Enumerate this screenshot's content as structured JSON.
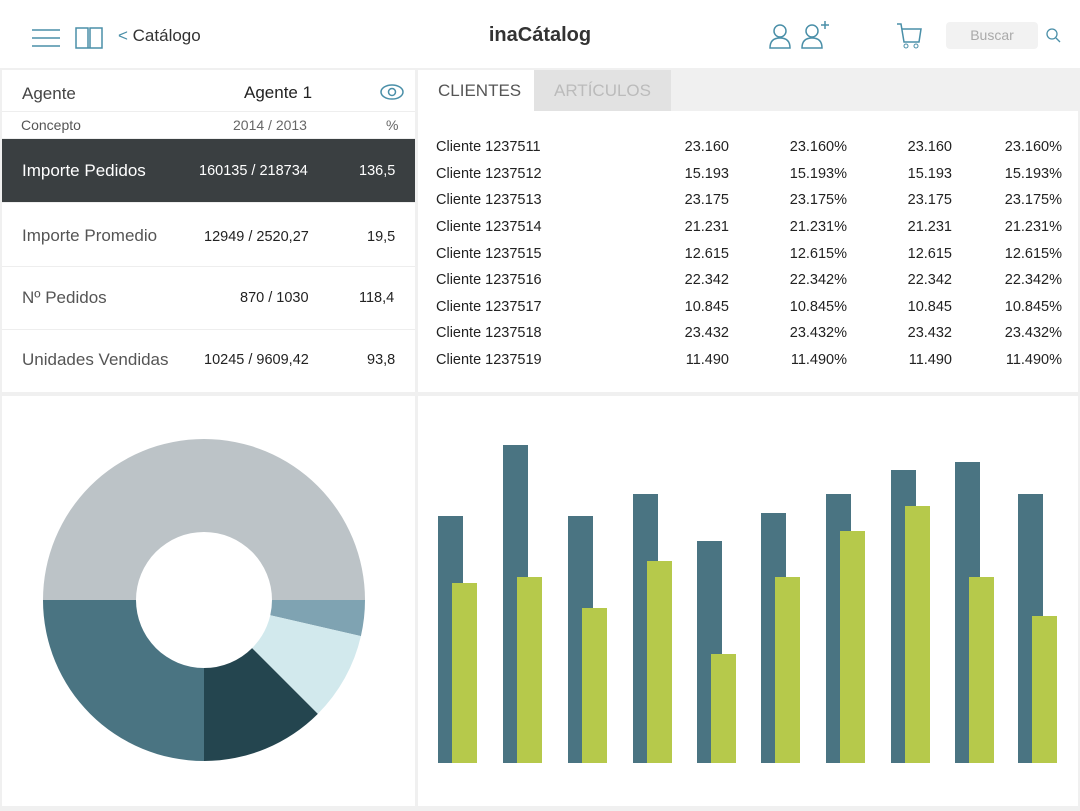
{
  "header": {
    "back_label": "Catálogo",
    "title": "inaCátalog",
    "search_placeholder": "Buscar"
  },
  "agent": {
    "label": "Agente",
    "value": "Agente 1"
  },
  "columns": {
    "concept": "Concepto",
    "period": "2014 / 2013",
    "percent": "%"
  },
  "metrics": [
    {
      "label": "Importe Pedidos",
      "value": "160135 / 218734",
      "pct": "136,5",
      "selected": true
    },
    {
      "label": "Importe Promedio",
      "value": "12949 / 2520,27",
      "pct": "19,5"
    },
    {
      "label": "Nº Pedidos",
      "value": "870 / 1030",
      "pct": "118,4"
    },
    {
      "label": "Unidades Vendidas",
      "value": "10245 / 9609,42",
      "pct": "93,8"
    }
  ],
  "tabs": [
    {
      "label": "CLIENTES",
      "active": true
    },
    {
      "label": "ARTÍCULOS",
      "active": false
    }
  ],
  "clients": [
    [
      "Cliente 1237511",
      "23.160",
      "23.160%",
      "23.160",
      "23.160%"
    ],
    [
      "Cliente 1237512",
      "15.193",
      "15.193%",
      "15.193",
      "15.193%"
    ],
    [
      "Cliente 1237513",
      "23.175",
      "23.175%",
      "23.175",
      "23.175%"
    ],
    [
      "Cliente 1237514",
      "21.231",
      "21.231%",
      "21.231",
      "21.231%"
    ],
    [
      "Cliente 1237515",
      "12.615",
      "12.615%",
      "12.615",
      "12.615%"
    ],
    [
      "Cliente 1237516",
      "22.342",
      "22.342%",
      "22.342",
      "22.342%"
    ],
    [
      "Cliente 1237517",
      "10.845",
      "10.845%",
      "10.845",
      "10.845%"
    ],
    [
      "Cliente 1237518",
      "23.432",
      "23.432%",
      "23.432",
      "23.432%"
    ],
    [
      "Cliente 1237519",
      "11.490",
      "11.490%",
      "11.490",
      "11.490%"
    ]
  ],
  "chart_data": [
    {
      "type": "pie",
      "donut": true,
      "values": [
        50,
        3.6,
        8.9,
        12.5,
        25
      ],
      "colors": [
        "#bcc3c7",
        "#7fa3b2",
        "#d2e9ed",
        "#24454f",
        "#4a7482"
      ]
    },
    {
      "type": "bar",
      "categories": [
        "1",
        "2",
        "3",
        "4",
        "5",
        "6",
        "7",
        "8",
        "9",
        "10"
      ],
      "axes": "none",
      "grid": false,
      "series": [
        {
          "values": [
            247,
            318,
            247,
            269,
            222,
            250,
            269,
            293,
            301,
            269
          ],
          "color": "#4a7482"
        },
        {
          "values": [
            180,
            186,
            155,
            202,
            109,
            186,
            232,
            257,
            186,
            147
          ],
          "color": "#b6c94b"
        }
      ]
    }
  ]
}
